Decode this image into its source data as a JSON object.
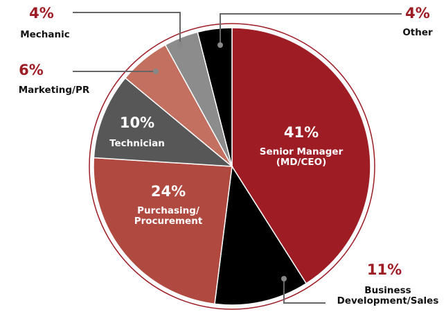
{
  "chart_data": {
    "type": "pie",
    "categories": [
      "Senior Manager\n(MD/CEO)",
      "Business\nDevelopment/Sales",
      "Purchasing/\nProcurement",
      "Technician",
      "Marketing/PR",
      "Mechanic",
      "Other"
    ],
    "values": [
      41,
      11,
      24,
      10,
      6,
      4,
      4
    ],
    "value_labels": [
      "41%",
      "11%",
      "24%",
      "10%",
      "6%",
      "4%",
      "4%"
    ],
    "colors": [
      "#9e1c24",
      "#000000",
      "#b04a40",
      "#575757",
      "#c47060",
      "#8c8c8c",
      "#000000"
    ]
  }
}
